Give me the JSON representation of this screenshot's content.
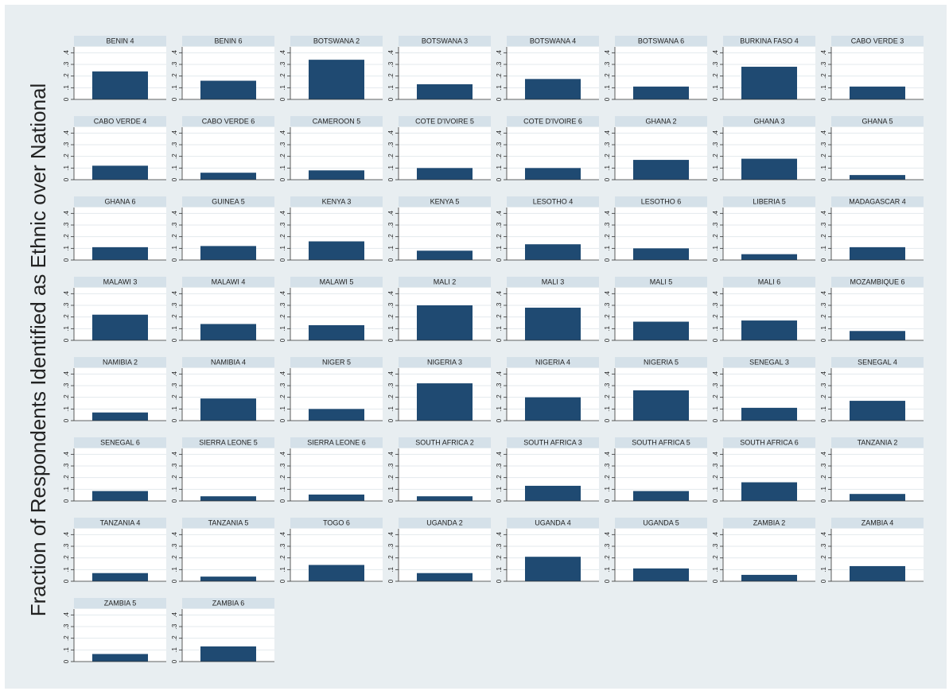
{
  "chart_data": {
    "type": "bar",
    "ylabel": "Fraction of Respondents Identified as Ethnic over National",
    "ylim": [
      0,
      0.45
    ],
    "yticks": [
      0,
      {
        "value": 0.1,
        "label": ".1"
      },
      {
        "value": 0.2,
        "label": ".2"
      },
      {
        "value": 0.3,
        "label": ".3"
      },
      {
        "value": 0.4,
        "label": ".4"
      }
    ],
    "grid": true,
    "color": "#1f4a72",
    "panels": [
      {
        "title": "BENIN 4",
        "value": 0.24
      },
      {
        "title": "BENIN 6",
        "value": 0.16
      },
      {
        "title": "BOTSWANA 2",
        "value": 0.34
      },
      {
        "title": "BOTSWANA 3",
        "value": 0.13
      },
      {
        "title": "BOTSWANA 4",
        "value": 0.175
      },
      {
        "title": "BOTSWANA 6",
        "value": 0.11
      },
      {
        "title": "BURKINA FASO 4",
        "value": 0.28
      },
      {
        "title": "CABO VERDE 3",
        "value": 0.11
      },
      {
        "title": "CABO VERDE 4",
        "value": 0.12
      },
      {
        "title": "CABO VERDE 6",
        "value": 0.06
      },
      {
        "title": "CAMEROON 5",
        "value": 0.08
      },
      {
        "title": "COTE D'IVOIRE 5",
        "value": 0.1
      },
      {
        "title": "COTE D'IVOIRE 6",
        "value": 0.1
      },
      {
        "title": "GHANA 2",
        "value": 0.17
      },
      {
        "title": "GHANA 3",
        "value": 0.18
      },
      {
        "title": "GHANA 5",
        "value": 0.04
      },
      {
        "title": "GHANA 6",
        "value": 0.11
      },
      {
        "title": "GUINEA 5",
        "value": 0.12
      },
      {
        "title": "KENYA 3",
        "value": 0.16
      },
      {
        "title": "KENYA 5",
        "value": 0.08
      },
      {
        "title": "LESOTHO 4",
        "value": 0.135
      },
      {
        "title": "LESOTHO 6",
        "value": 0.1
      },
      {
        "title": "LIBERIA 5",
        "value": 0.05
      },
      {
        "title": "MADAGASCAR 4",
        "value": 0.11
      },
      {
        "title": "MALAWI 3",
        "value": 0.22
      },
      {
        "title": "MALAWI 4",
        "value": 0.14
      },
      {
        "title": "MALAWI 5",
        "value": 0.13
      },
      {
        "title": "MALI 2",
        "value": 0.3
      },
      {
        "title": "MALI 3",
        "value": 0.28
      },
      {
        "title": "MALI 5",
        "value": 0.16
      },
      {
        "title": "MALI 6",
        "value": 0.17
      },
      {
        "title": "MOZAMBIQUE 6",
        "value": 0.08
      },
      {
        "title": "NAMIBIA 2",
        "value": 0.07
      },
      {
        "title": "NAMIBIA 4",
        "value": 0.19
      },
      {
        "title": "NIGER 5",
        "value": 0.1
      },
      {
        "title": "NIGERIA 3",
        "value": 0.32
      },
      {
        "title": "NIGERIA 4",
        "value": 0.2
      },
      {
        "title": "NIGERIA 5",
        "value": 0.26
      },
      {
        "title": "SENEGAL 3",
        "value": 0.11
      },
      {
        "title": "SENEGAL 4",
        "value": 0.17
      },
      {
        "title": "SENEGAL 6",
        "value": 0.085
      },
      {
        "title": "SIERRA LEONE 5",
        "value": 0.04
      },
      {
        "title": "SIERRA LEONE 6",
        "value": 0.055
      },
      {
        "title": "SOUTH AFRICA 2",
        "value": 0.04
      },
      {
        "title": "SOUTH AFRICA 3",
        "value": 0.13
      },
      {
        "title": "SOUTH AFRICA 5",
        "value": 0.085
      },
      {
        "title": "SOUTH AFRICA 6",
        "value": 0.16
      },
      {
        "title": "TANZANIA 2",
        "value": 0.06
      },
      {
        "title": "TANZANIA 4",
        "value": 0.07
      },
      {
        "title": "TANZANIA 5",
        "value": 0.04
      },
      {
        "title": "TOGO 6",
        "value": 0.14
      },
      {
        "title": "UGANDA 2",
        "value": 0.07
      },
      {
        "title": "UGANDA 4",
        "value": 0.21
      },
      {
        "title": "UGANDA 5",
        "value": 0.11
      },
      {
        "title": "ZAMBIA 2",
        "value": 0.055
      },
      {
        "title": "ZAMBIA 4",
        "value": 0.13
      },
      {
        "title": "ZAMBIA 5",
        "value": 0.065
      },
      {
        "title": "ZAMBIA 6",
        "value": 0.13
      }
    ]
  }
}
